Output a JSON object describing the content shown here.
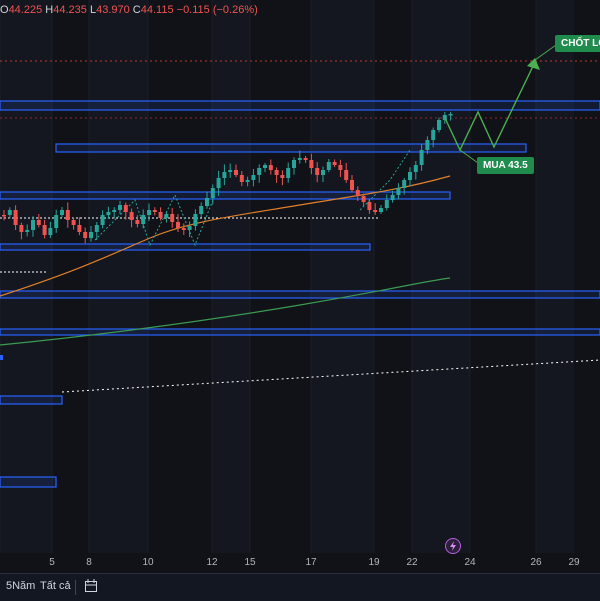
{
  "ohlc": {
    "o_label": "O",
    "o_value": "44.225",
    "h_label": "H",
    "h_value": "44.235",
    "l_label": "L",
    "l_value": "43.970",
    "c_label": "C",
    "c_value": "44.115",
    "change": "−0.115 (−0.26%)"
  },
  "annotations": {
    "take_profit": "CHỐT LỜ",
    "buy": "MUA 43.5"
  },
  "x_axis": {
    "ticks": [
      "5",
      "8",
      "10",
      "12",
      "15",
      "17",
      "19",
      "22",
      "24",
      "26",
      "29"
    ]
  },
  "bottom_bar": {
    "range_5y": "5Năm",
    "range_all": "Tất cả"
  },
  "colors": {
    "up": "#26a69a",
    "down": "#ef5350",
    "zone": "#2962ff",
    "ma_orange": "#e0802a",
    "ma_green": "#3c9b52",
    "projection": "#4caf50"
  },
  "icons": {
    "flash": "lightning-icon",
    "date_range": "calendar-range-icon"
  }
}
